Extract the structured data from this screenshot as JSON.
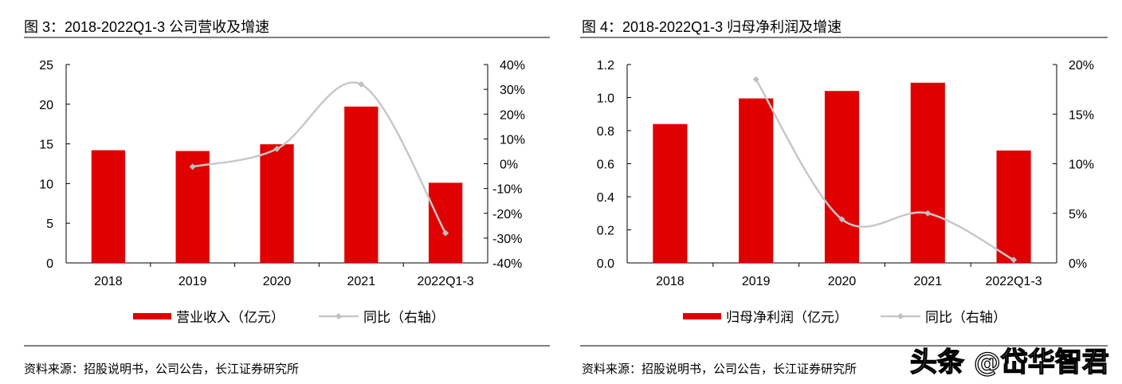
{
  "chart_data": [
    {
      "type": "bar+line",
      "title": "图  3：2018-2022Q1-3 公司营收及增速",
      "categories": [
        "2018",
        "2019",
        "2020",
        "2021",
        "2022Q1-3"
      ],
      "series": [
        {
          "name": "营业收入（亿元）",
          "type": "bar",
          "axis": "left",
          "values": [
            14.2,
            14.1,
            14.95,
            19.7,
            10.1
          ]
        },
        {
          "name": "同比（右轴）",
          "type": "line",
          "axis": "right",
          "values": [
            null,
            -1.2,
            6.0,
            32.0,
            -28.0
          ]
        }
      ],
      "left_axis": {
        "ylim": [
          0,
          25
        ],
        "ticks": [
          "0",
          "5",
          "10",
          "15",
          "20",
          "25"
        ]
      },
      "right_axis": {
        "ylim": [
          -40,
          40
        ],
        "unit": "%",
        "ticks": [
          "-40%",
          "-30%",
          "-20%",
          "-10%",
          "0%",
          "10%",
          "20%",
          "30%",
          "40%"
        ]
      },
      "grid": false,
      "legend": "bottom",
      "source": "资料来源：招股说明书，公司公告，长江证券研究所"
    },
    {
      "type": "bar+line",
      "title": "图  4：2018-2022Q1-3 归母净利润及增速",
      "categories": [
        "2018",
        "2019",
        "2020",
        "2021",
        "2022Q1-3"
      ],
      "series": [
        {
          "name": "归母净利润（亿元）",
          "type": "bar",
          "axis": "left",
          "values": [
            0.84,
            0.995,
            1.04,
            1.09,
            0.68
          ]
        },
        {
          "name": "同比（右轴）",
          "type": "line",
          "axis": "right",
          "values": [
            null,
            18.5,
            4.4,
            5.0,
            0.3
          ]
        }
      ],
      "left_axis": {
        "ylim": [
          0,
          1.2
        ],
        "ticks": [
          "0.0",
          "0.2",
          "0.4",
          "0.6",
          "0.8",
          "1.0",
          "1.2"
        ]
      },
      "right_axis": {
        "ylim": [
          0,
          20
        ],
        "unit": "%",
        "ticks": [
          "0%",
          "5%",
          "10%",
          "15%",
          "20%"
        ]
      },
      "grid": false,
      "legend": "bottom",
      "source": "资料来源：招股说明书，公司公告，长江证券研究所"
    }
  ],
  "colors": {
    "bar": "#e00000",
    "line": "#c8c8c8",
    "marker": "#c0c0c0"
  },
  "watermark": "头条 @岱华智君"
}
